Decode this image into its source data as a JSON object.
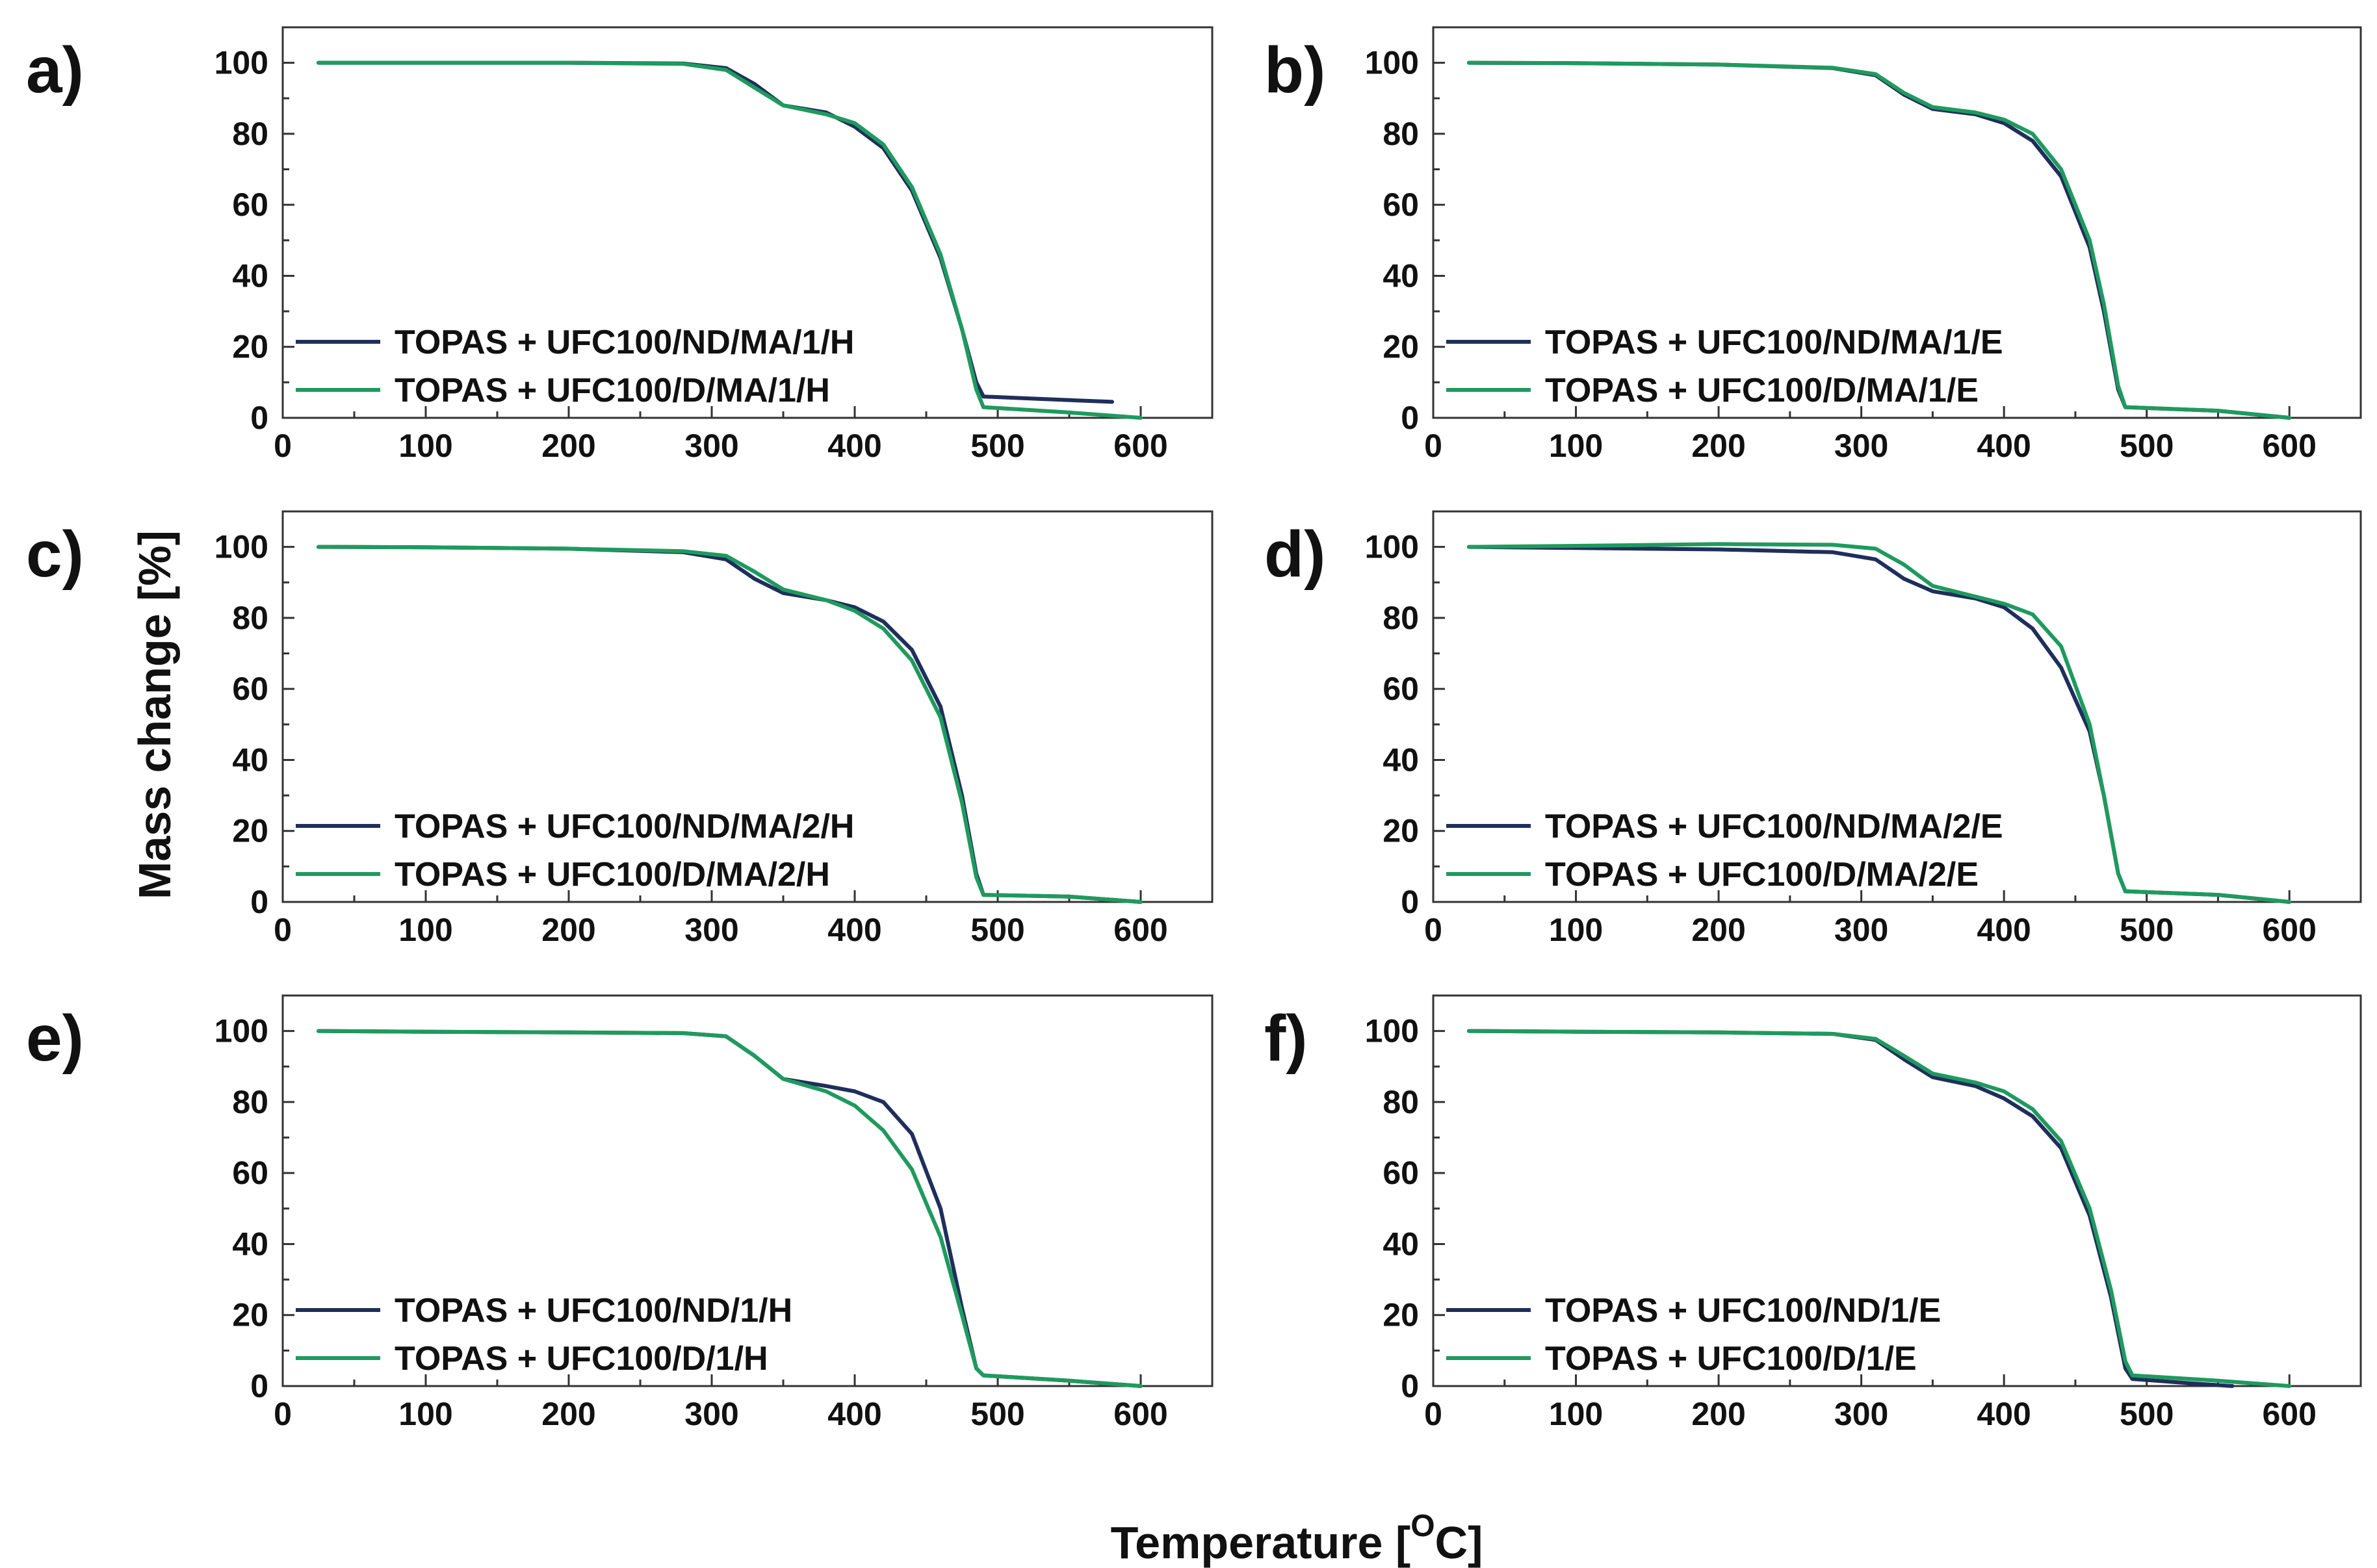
{
  "figure": {
    "ylabel": "Mass change [%]",
    "xlabel_main": "Temperature [",
    "xlabel_sup": "O",
    "xlabel_end": "C]"
  },
  "colors": {
    "series1": "#1f2f5c",
    "series2": "#1f9a5e"
  },
  "chart_data": [
    {
      "type": "line",
      "panel": "a)",
      "xlim": [
        0,
        650
      ],
      "ylim": [
        0,
        110
      ],
      "xticks": [
        0,
        100,
        200,
        300,
        400,
        500,
        600
      ],
      "yticks": [
        0,
        20,
        40,
        60,
        80,
        100
      ],
      "series": [
        {
          "name": "TOPAS + UFC100/ND/MA/1/H",
          "points": [
            [
              25,
              100
            ],
            [
              100,
              100
            ],
            [
              200,
              100
            ],
            [
              280,
              99.8
            ],
            [
              310,
              98.5
            ],
            [
              330,
              94
            ],
            [
              350,
              88
            ],
            [
              380,
              86
            ],
            [
              400,
              82
            ],
            [
              420,
              76
            ],
            [
              440,
              64
            ],
            [
              460,
              45
            ],
            [
              475,
              25
            ],
            [
              485,
              10
            ],
            [
              490,
              6
            ],
            [
              520,
              5.5
            ],
            [
              580,
              4.5
            ]
          ]
        },
        {
          "name": "TOPAS + UFC100/D/MA/1/H",
          "points": [
            [
              25,
              100
            ],
            [
              100,
              100
            ],
            [
              200,
              100
            ],
            [
              280,
              99.7
            ],
            [
              310,
              98
            ],
            [
              330,
              93
            ],
            [
              350,
              88
            ],
            [
              380,
              85.5
            ],
            [
              400,
              83
            ],
            [
              420,
              77
            ],
            [
              440,
              65
            ],
            [
              460,
              46
            ],
            [
              475,
              25
            ],
            [
              485,
              8
            ],
            [
              490,
              3
            ],
            [
              550,
              1.5
            ],
            [
              600,
              0
            ]
          ]
        }
      ]
    },
    {
      "type": "line",
      "panel": "b)",
      "xlim": [
        0,
        650
      ],
      "ylim": [
        0,
        110
      ],
      "xticks": [
        0,
        100,
        200,
        300,
        400,
        500,
        600
      ],
      "yticks": [
        0,
        20,
        40,
        60,
        80,
        100
      ],
      "series": [
        {
          "name": "TOPAS + UFC100/ND/MA/1/E",
          "points": [
            [
              25,
              100
            ],
            [
              100,
              99.9
            ],
            [
              200,
              99.5
            ],
            [
              280,
              98.5
            ],
            [
              310,
              96.5
            ],
            [
              330,
              91
            ],
            [
              350,
              87
            ],
            [
              380,
              85.5
            ],
            [
              400,
              83
            ],
            [
              420,
              78
            ],
            [
              440,
              68
            ],
            [
              460,
              48
            ],
            [
              470,
              30
            ],
            [
              480,
              8
            ],
            [
              485,
              3
            ],
            [
              550,
              2
            ],
            [
              600,
              0
            ]
          ]
        },
        {
          "name": "TOPAS + UFC100/D/MA/1/E",
          "points": [
            [
              25,
              100
            ],
            [
              100,
              99.9
            ],
            [
              200,
              99.5
            ],
            [
              280,
              98.6
            ],
            [
              310,
              96.8
            ],
            [
              330,
              91.5
            ],
            [
              350,
              87.5
            ],
            [
              380,
              86
            ],
            [
              400,
              84
            ],
            [
              420,
              80
            ],
            [
              440,
              70
            ],
            [
              460,
              50
            ],
            [
              470,
              32
            ],
            [
              480,
              9
            ],
            [
              485,
              3
            ],
            [
              550,
              2
            ],
            [
              600,
              0
            ]
          ]
        }
      ]
    },
    {
      "type": "line",
      "panel": "c)",
      "xlim": [
        0,
        650
      ],
      "ylim": [
        0,
        110
      ],
      "xticks": [
        0,
        100,
        200,
        300,
        400,
        500,
        600
      ],
      "yticks": [
        0,
        20,
        40,
        60,
        80,
        100
      ],
      "series": [
        {
          "name": "TOPAS + UFC100/ND/MA/2/H",
          "points": [
            [
              25,
              100
            ],
            [
              100,
              99.9
            ],
            [
              200,
              99.5
            ],
            [
              280,
              98.5
            ],
            [
              310,
              96.5
            ],
            [
              330,
              91
            ],
            [
              350,
              87
            ],
            [
              380,
              85
            ],
            [
              400,
              83
            ],
            [
              420,
              79
            ],
            [
              440,
              71
            ],
            [
              460,
              55
            ],
            [
              475,
              30
            ],
            [
              485,
              8
            ],
            [
              490,
              2
            ],
            [
              550,
              1.5
            ],
            [
              600,
              0
            ]
          ]
        },
        {
          "name": "TOPAS + UFC100/D/MA/2/H",
          "points": [
            [
              25,
              100
            ],
            [
              100,
              99.9
            ],
            [
              200,
              99.5
            ],
            [
              280,
              98.8
            ],
            [
              310,
              97.5
            ],
            [
              330,
              93
            ],
            [
              350,
              88
            ],
            [
              380,
              85
            ],
            [
              400,
              82
            ],
            [
              420,
              77
            ],
            [
              440,
              68
            ],
            [
              460,
              52
            ],
            [
              475,
              28
            ],
            [
              485,
              7
            ],
            [
              490,
              2
            ],
            [
              550,
              1.5
            ],
            [
              600,
              0
            ]
          ]
        }
      ]
    },
    {
      "type": "line",
      "panel": "d)",
      "xlim": [
        0,
        650
      ],
      "ylim": [
        0,
        110
      ],
      "xticks": [
        0,
        100,
        200,
        300,
        400,
        500,
        600
      ],
      "yticks": [
        0,
        20,
        40,
        60,
        80,
        100
      ],
      "series": [
        {
          "name": "TOPAS + UFC100/ND/MA/2/E",
          "points": [
            [
              25,
              100
            ],
            [
              100,
              99.7
            ],
            [
              200,
              99.3
            ],
            [
              280,
              98.5
            ],
            [
              310,
              96.5
            ],
            [
              330,
              91
            ],
            [
              350,
              87.5
            ],
            [
              380,
              85.5
            ],
            [
              400,
              83
            ],
            [
              420,
              77
            ],
            [
              440,
              66
            ],
            [
              460,
              48
            ],
            [
              470,
              30
            ],
            [
              480,
              8
            ],
            [
              485,
              3
            ],
            [
              550,
              2
            ],
            [
              600,
              0
            ]
          ]
        },
        {
          "name": "TOPAS + UFC100/D/MA/2/E",
          "points": [
            [
              25,
              100
            ],
            [
              100,
              100.3
            ],
            [
              200,
              100.8
            ],
            [
              280,
              100.6
            ],
            [
              310,
              99.5
            ],
            [
              330,
              95
            ],
            [
              350,
              89
            ],
            [
              380,
              86
            ],
            [
              400,
              84
            ],
            [
              420,
              81
            ],
            [
              440,
              72
            ],
            [
              460,
              50
            ],
            [
              470,
              30
            ],
            [
              480,
              8
            ],
            [
              485,
              3
            ],
            [
              550,
              2
            ],
            [
              600,
              0
            ]
          ]
        }
      ]
    },
    {
      "type": "line",
      "panel": "e)",
      "xlim": [
        0,
        650
      ],
      "ylim": [
        0,
        110
      ],
      "xticks": [
        0,
        100,
        200,
        300,
        400,
        500,
        600
      ],
      "yticks": [
        0,
        20,
        40,
        60,
        80,
        100
      ],
      "series": [
        {
          "name": "TOPAS + UFC100/ND/1/H",
          "points": [
            [
              25,
              100
            ],
            [
              100,
              99.8
            ],
            [
              200,
              99.6
            ],
            [
              280,
              99.4
            ],
            [
              310,
              98.5
            ],
            [
              330,
              93
            ],
            [
              350,
              86.5
            ],
            [
              380,
              84.5
            ],
            [
              400,
              83
            ],
            [
              420,
              80
            ],
            [
              440,
              71
            ],
            [
              460,
              50
            ],
            [
              475,
              22
            ],
            [
              485,
              5
            ],
            [
              490,
              3
            ],
            [
              550,
              1.5
            ],
            [
              600,
              0
            ]
          ]
        },
        {
          "name": "TOPAS + UFC100/D/1/H",
          "points": [
            [
              25,
              100
            ],
            [
              100,
              99.8
            ],
            [
              200,
              99.6
            ],
            [
              280,
              99.4
            ],
            [
              310,
              98.5
            ],
            [
              330,
              93
            ],
            [
              350,
              86.5
            ],
            [
              380,
              83
            ],
            [
              400,
              79
            ],
            [
              420,
              72
            ],
            [
              440,
              61
            ],
            [
              460,
              42
            ],
            [
              475,
              20
            ],
            [
              485,
              5
            ],
            [
              490,
              3
            ],
            [
              550,
              1.5
            ],
            [
              600,
              0
            ]
          ]
        }
      ]
    },
    {
      "type": "line",
      "panel": "f)",
      "xlim": [
        0,
        650
      ],
      "ylim": [
        0,
        110
      ],
      "xticks": [
        0,
        100,
        200,
        300,
        400,
        500,
        600
      ],
      "yticks": [
        0,
        20,
        40,
        60,
        80,
        100
      ],
      "series": [
        {
          "name": "TOPAS + UFC100/ND/1/E",
          "points": [
            [
              25,
              100
            ],
            [
              100,
              99.8
            ],
            [
              200,
              99.6
            ],
            [
              280,
              99.2
            ],
            [
              310,
              97.5
            ],
            [
              330,
              92
            ],
            [
              350,
              87
            ],
            [
              380,
              84.5
            ],
            [
              400,
              81
            ],
            [
              420,
              76
            ],
            [
              440,
              67
            ],
            [
              460,
              48
            ],
            [
              475,
              25
            ],
            [
              485,
              5
            ],
            [
              490,
              2
            ],
            [
              530,
              0.8
            ],
            [
              560,
              0
            ]
          ]
        },
        {
          "name": "TOPAS + UFC100/D/1/E",
          "points": [
            [
              25,
              100
            ],
            [
              100,
              99.8
            ],
            [
              200,
              99.6
            ],
            [
              280,
              99.2
            ],
            [
              310,
              97.8
            ],
            [
              330,
              93
            ],
            [
              350,
              88
            ],
            [
              380,
              85.5
            ],
            [
              400,
              83
            ],
            [
              420,
              78
            ],
            [
              440,
              69
            ],
            [
              460,
              50
            ],
            [
              475,
              27
            ],
            [
              485,
              7
            ],
            [
              490,
              3
            ],
            [
              550,
              1.5
            ],
            [
              600,
              0
            ]
          ]
        }
      ]
    }
  ]
}
